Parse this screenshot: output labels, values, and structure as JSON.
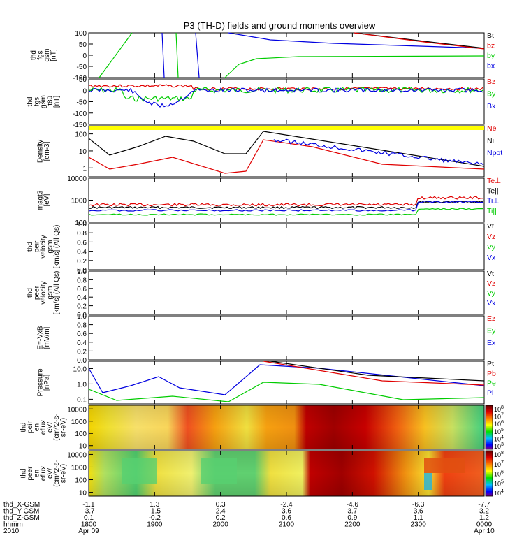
{
  "title": "P3 (TH-D) fields and ground moments overview",
  "colors": {
    "black": "#000000",
    "red": "#e00000",
    "green": "#00cc00",
    "blue": "#0000e0",
    "yellow": "#ffff00"
  },
  "chart_data": [
    {
      "type": "line",
      "ylabel": [
        "thd",
        "fgs",
        "gsm",
        "[nT]"
      ],
      "ylim": [
        -100,
        100
      ],
      "yticks": [
        "100",
        "50",
        "0",
        "-50",
        "-100"
      ],
      "legend": [
        {
          "label": "Bt",
          "color": "#000000"
        },
        {
          "label": "bz",
          "color": "#e00000"
        },
        {
          "label": "by",
          "color": "#00cc00"
        },
        {
          "label": "bx",
          "color": "#0000e0"
        }
      ]
    },
    {
      "type": "line",
      "ylabel": [
        "thd",
        "fgs",
        "gsm",
        "-t89",
        "[nT]"
      ],
      "ylim": [
        -150,
        50
      ],
      "yticks": [
        "50",
        "0",
        "-50",
        "-100",
        "-150"
      ],
      "legend": [
        {
          "label": "Bz",
          "color": "#e00000"
        },
        {
          "label": "By",
          "color": "#00cc00"
        },
        {
          "label": "Bx",
          "color": "#0000e0"
        }
      ]
    },
    {
      "type": "line",
      "ylabel": [
        "Density",
        "[cm-3]"
      ],
      "scale": "log",
      "ylim": [
        0.3,
        300
      ],
      "yticks": [
        "100",
        "10",
        "1"
      ],
      "legend": [
        {
          "label": "Ne",
          "color": "#e00000"
        },
        {
          "label": "Ni",
          "color": "#000000"
        },
        {
          "label": "Npot",
          "color": "#0000e0"
        }
      ]
    },
    {
      "type": "line",
      "ylabel": [
        "magt3",
        "[eV]"
      ],
      "scale": "log",
      "ylim": [
        100,
        10000
      ],
      "yticks": [
        "10000",
        "1000",
        "100"
      ],
      "legend": [
        {
          "label": "Te⊥",
          "color": "#e00000"
        },
        {
          "label": "Te||",
          "color": "#000000"
        },
        {
          "label": "Ti⊥",
          "color": "#0000e0"
        },
        {
          "label": "Ti||",
          "color": "#00cc00"
        }
      ]
    },
    {
      "type": "line",
      "ylabel": [
        "thd",
        "peir",
        "velocity",
        "gsm",
        "[km/s] (All Qs)"
      ],
      "ylim": [
        0,
        1
      ],
      "yticks": [
        "1.0",
        "0.8",
        "0.6",
        "0.4",
        "0.2",
        "0.0"
      ],
      "legend": [
        {
          "label": "Vt",
          "color": "#000000"
        },
        {
          "label": "Vz",
          "color": "#e00000"
        },
        {
          "label": "Vy",
          "color": "#00cc00"
        },
        {
          "label": "Vx",
          "color": "#0000e0"
        }
      ]
    },
    {
      "type": "line",
      "ylabel": [
        "thd",
        "peer",
        "velocity",
        "gsm",
        "[km/s] (All Qs)"
      ],
      "ylim": [
        0,
        1
      ],
      "yticks": [
        "1.0",
        "0.8",
        "0.6",
        "0.4",
        "0.2",
        "0.0"
      ],
      "legend": [
        {
          "label": "Vt",
          "color": "#000000"
        },
        {
          "label": "Vz",
          "color": "#e00000"
        },
        {
          "label": "Vy",
          "color": "#00cc00"
        },
        {
          "label": "Vx",
          "color": "#0000e0"
        }
      ]
    },
    {
      "type": "line",
      "ylabel": [
        "E=-VxB",
        "[mV/m]"
      ],
      "ylim": [
        0,
        1
      ],
      "yticks": [
        "1.0",
        "0.8",
        "0.6",
        "0.4",
        "0.2",
        "0.0"
      ],
      "legend": [
        {
          "label": "Ez",
          "color": "#e00000"
        },
        {
          "label": "Ey",
          "color": "#00cc00"
        },
        {
          "label": "Ex",
          "color": "#0000e0"
        }
      ]
    },
    {
      "type": "line",
      "ylabel": [
        "Pressure",
        "[nPa]"
      ],
      "scale": "log",
      "ylim": [
        0.05,
        30
      ],
      "yticks": [
        "10.0",
        "1.0",
        "0.1"
      ],
      "legend": [
        {
          "label": "Pt",
          "color": "#000000"
        },
        {
          "label": "Pb",
          "color": "#e00000"
        },
        {
          "label": "Pe",
          "color": "#00cc00"
        },
        {
          "label": "Pi",
          "color": "#0000e0"
        }
      ]
    },
    {
      "type": "heatmap",
      "ylabel": [
        "thd",
        "peir",
        "en",
        "eflux",
        "eV/",
        "(cm^2-s-",
        "sr-eV)"
      ],
      "scale": "log",
      "ylim": [
        5,
        20000
      ],
      "yticks": [
        "10000",
        "1000",
        "100",
        "10"
      ],
      "colorbar": [
        "10^8",
        "10^7",
        "10^6",
        "10^5",
        "10^4",
        "10^3"
      ]
    },
    {
      "type": "heatmap",
      "ylabel": [
        "thd",
        "peer",
        "en",
        "eflux",
        "eV/",
        "(cm^2-s-",
        "sr-eV)"
      ],
      "scale": "log",
      "ylim": [
        5,
        20000
      ],
      "yticks": [
        "10000",
        "1000",
        "100",
        "10"
      ],
      "colorbar": [
        "10^8",
        "10^7",
        "10^6",
        "10^5",
        "10^4"
      ]
    }
  ],
  "xaxis": {
    "row_labels": [
      "thd_X-GSM",
      "thd_Y-GSM",
      "thd_Z-GSM",
      "hhmm",
      "2010"
    ],
    "columns": [
      {
        "vals": [
          "-1.1",
          "-3.7",
          "0.1",
          "1800",
          "Apr 09"
        ]
      },
      {
        "vals": [
          "1.3",
          "-1.5",
          "-0.2",
          "1900",
          ""
        ]
      },
      {
        "vals": [
          "0.3",
          "2.4",
          "0.2",
          "2000",
          ""
        ]
      },
      {
        "vals": [
          "-2.4",
          "3.6",
          "0.6",
          "2100",
          ""
        ]
      },
      {
        "vals": [
          "-4.6",
          "3.7",
          "0.9",
          "2200",
          ""
        ]
      },
      {
        "vals": [
          "-6.3",
          "3.6",
          "1.1",
          "2300",
          ""
        ]
      },
      {
        "vals": [
          "-7.7",
          "3.2",
          "1.2",
          "0000",
          "Apr 10"
        ]
      }
    ]
  }
}
